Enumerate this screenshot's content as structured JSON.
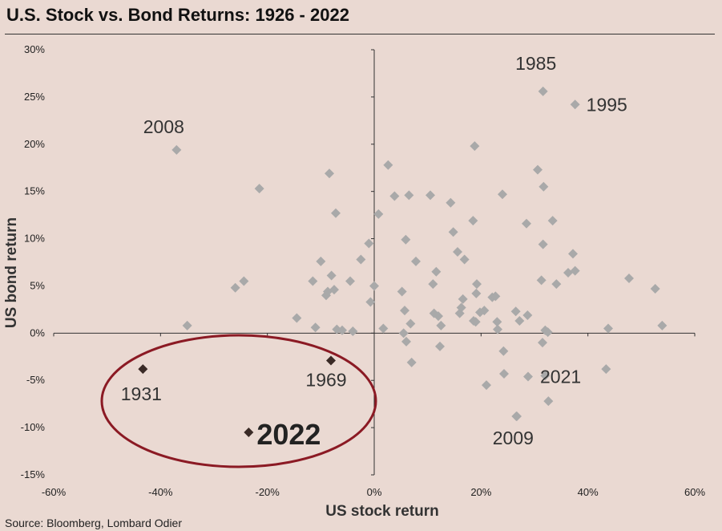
{
  "title": "U.S. Stock vs. Bond Returns: 1926 - 2022",
  "source": "Source: Bloomberg, Lombard Odier",
  "colors": {
    "background": "#ead9d2",
    "point": "#a9a9a9",
    "highlight_point": "#3a2a26",
    "ellipse": "#8b1a24",
    "axis": "#333333",
    "text": "#222222"
  },
  "chart_data": {
    "type": "scatter",
    "xlabel": "US stock return",
    "ylabel": "US bond return",
    "xlim": [
      -60,
      60
    ],
    "ylim": [
      -15,
      30
    ],
    "x_ticks": [
      -60,
      -40,
      -20,
      0,
      20,
      40,
      60
    ],
    "y_ticks": [
      -15,
      -10,
      -5,
      0,
      5,
      10,
      15,
      20,
      25,
      30
    ],
    "x_tick_labels": [
      "-60%",
      "-40%",
      "-20%",
      "0%",
      "20%",
      "40%",
      "60%"
    ],
    "y_tick_labels": [
      "-15%",
      "-10%",
      "-5%",
      "0%",
      "5%",
      "10%",
      "15%",
      "20%",
      "25%",
      "30%"
    ],
    "grid": false,
    "points": [
      [
        -37.0,
        19.4
      ],
      [
        -35.0,
        0.8
      ],
      [
        -26.0,
        4.8
      ],
      [
        -24.4,
        5.5
      ],
      [
        -21.5,
        15.3
      ],
      [
        -14.5,
        1.6
      ],
      [
        -11.5,
        5.5
      ],
      [
        -11.0,
        0.6
      ],
      [
        -10.0,
        7.6
      ],
      [
        -9.0,
        4.0
      ],
      [
        -8.7,
        4.4
      ],
      [
        -8.4,
        16.9
      ],
      [
        -8.0,
        6.1
      ],
      [
        -7.5,
        4.6
      ],
      [
        -7.2,
        12.7
      ],
      [
        -7.0,
        0.4
      ],
      [
        -6.0,
        0.3
      ],
      [
        -4.5,
        5.5
      ],
      [
        -4.0,
        0.2
      ],
      [
        -2.5,
        7.8
      ],
      [
        -1.0,
        9.5
      ],
      [
        -0.7,
        3.3
      ],
      [
        0.0,
        5.0
      ],
      [
        0.8,
        12.6
      ],
      [
        1.7,
        0.5
      ],
      [
        2.6,
        17.8
      ],
      [
        3.8,
        14.5
      ],
      [
        5.2,
        4.4
      ],
      [
        5.5,
        0.0
      ],
      [
        5.7,
        2.4
      ],
      [
        5.9,
        9.9
      ],
      [
        6.0,
        -0.9
      ],
      [
        6.5,
        14.6
      ],
      [
        6.8,
        1.0
      ],
      [
        7.0,
        -3.1
      ],
      [
        7.8,
        7.6
      ],
      [
        10.5,
        14.6
      ],
      [
        11.0,
        5.2
      ],
      [
        11.2,
        2.1
      ],
      [
        11.6,
        6.5
      ],
      [
        12.0,
        1.8
      ],
      [
        12.3,
        -1.4
      ],
      [
        12.5,
        0.8
      ],
      [
        14.3,
        13.8
      ],
      [
        14.8,
        10.7
      ],
      [
        15.6,
        8.6
      ],
      [
        16.0,
        2.1
      ],
      [
        16.3,
        2.7
      ],
      [
        16.6,
        3.6
      ],
      [
        16.9,
        7.8
      ],
      [
        18.5,
        11.9
      ],
      [
        18.6,
        1.3
      ],
      [
        18.8,
        19.8
      ],
      [
        19.0,
        1.2
      ],
      [
        19.1,
        4.2
      ],
      [
        19.2,
        5.2
      ],
      [
        19.8,
        2.2
      ],
      [
        20.6,
        2.4
      ],
      [
        21.0,
        -5.5
      ],
      [
        22.1,
        3.8
      ],
      [
        22.7,
        3.9
      ],
      [
        23.0,
        1.2
      ],
      [
        23.1,
        0.4
      ],
      [
        24.0,
        14.7
      ],
      [
        24.2,
        -1.9
      ],
      [
        24.3,
        -4.3
      ],
      [
        26.5,
        2.3
      ],
      [
        26.7,
        -8.8
      ],
      [
        27.2,
        1.3
      ],
      [
        28.5,
        11.6
      ],
      [
        28.7,
        1.9
      ],
      [
        28.8,
        -4.6
      ],
      [
        30.6,
        17.3
      ],
      [
        31.3,
        5.6
      ],
      [
        31.5,
        -1.0
      ],
      [
        31.6,
        9.4
      ],
      [
        31.7,
        15.5
      ],
      [
        32.0,
        0.3
      ],
      [
        32.5,
        0.1
      ],
      [
        32.6,
        -7.2
      ],
      [
        33.4,
        11.9
      ],
      [
        34.1,
        5.2
      ],
      [
        36.3,
        6.4
      ],
      [
        37.2,
        8.4
      ],
      [
        37.6,
        6.6
      ],
      [
        43.4,
        -3.8
      ],
      [
        43.8,
        0.5
      ],
      [
        47.7,
        5.8
      ],
      [
        52.6,
        4.7
      ],
      [
        53.9,
        0.8
      ],
      [
        31.6,
        25.6
      ],
      [
        37.6,
        24.2
      ],
      [
        32.0,
        -4.5
      ],
      [
        26.6,
        -8.8
      ]
    ],
    "highlighted_points": [
      {
        "x": -43.3,
        "y": -3.8,
        "label": "1931"
      },
      {
        "x": -8.1,
        "y": -2.9,
        "label": "1969"
      },
      {
        "x": -23.5,
        "y": -10.5,
        "label": "2022"
      }
    ],
    "annotations": [
      {
        "text": "2008",
        "x": -37.0,
        "y": 19.4
      },
      {
        "text": "1985",
        "x": 31.6,
        "y": 25.6
      },
      {
        "text": "1995",
        "x": 37.6,
        "y": 24.2
      },
      {
        "text": "2021",
        "x": 28.8,
        "y": -4.6
      },
      {
        "text": "2009",
        "x": 26.6,
        "y": -8.8
      }
    ]
  }
}
